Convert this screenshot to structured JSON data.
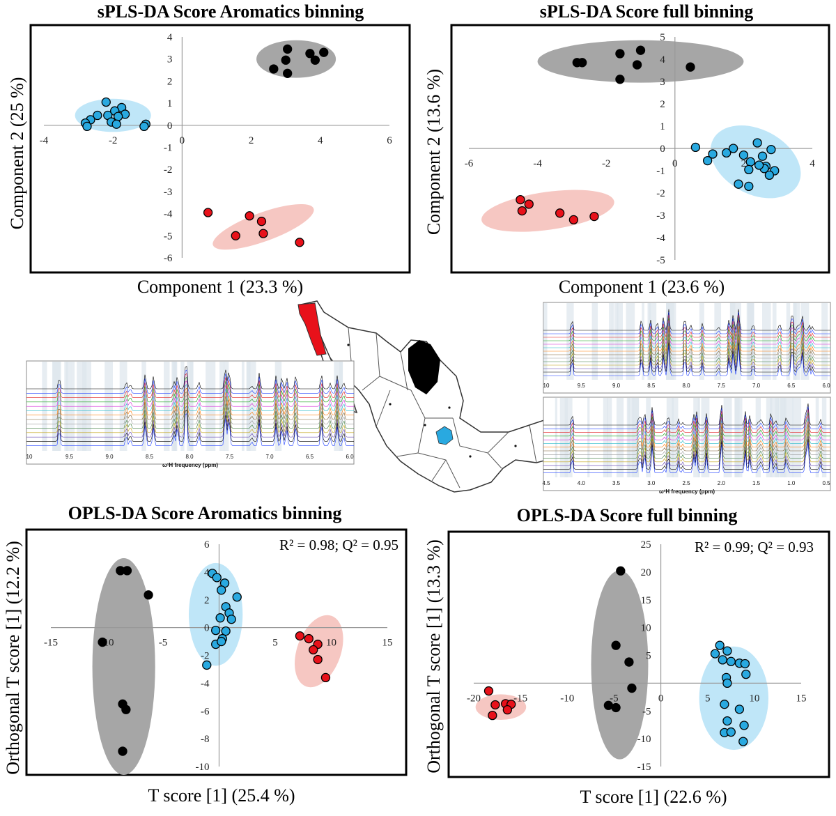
{
  "colors": {
    "black_group": "#000000",
    "blue_group": "#29a9e0",
    "red_group": "#e8111a",
    "black_ellipse": "#a6a6a6",
    "blue_ellipse": "#bfe6f8",
    "red_ellipse": "#f6c7c2"
  },
  "chart_data": [
    {
      "type": "scatter",
      "title": "sPLS-DA Score Aromatics binning",
      "xlabel": "Component 1 (23.3 %)",
      "ylabel": "Component 2 (25 %)",
      "xlim": [
        -4,
        6
      ],
      "ylim": [
        -6,
        4
      ],
      "xticks": [
        -4,
        -2,
        0,
        2,
        4,
        6
      ],
      "yticks": [
        -6,
        -5,
        -4,
        -3,
        -2,
        -1,
        0,
        1,
        2,
        3,
        4
      ],
      "ellipses": [
        {
          "group": "black",
          "cx": 3.3,
          "cy": 3.0,
          "rx": 1.15,
          "ry": 0.85,
          "angle": 0
        },
        {
          "group": "blue",
          "cx": -2.0,
          "cy": 0.45,
          "rx": 1.1,
          "ry": 0.75,
          "angle": 0
        },
        {
          "group": "red",
          "cx": 2.35,
          "cy": -4.6,
          "rx": 1.55,
          "ry": 0.65,
          "angle": -20
        }
      ],
      "series": [
        {
          "name": "black",
          "points": [
            [
              3.05,
              3.45
            ],
            [
              3.7,
              3.25
            ],
            [
              4.1,
              3.3
            ],
            [
              2.65,
              2.55
            ],
            [
              3.0,
              2.95
            ],
            [
              3.05,
              2.35
            ],
            [
              3.85,
              2.95
            ]
          ]
        },
        {
          "name": "blue",
          "points": [
            [
              -2.2,
              1.05
            ],
            [
              -1.75,
              0.8
            ],
            [
              -1.95,
              0.65
            ],
            [
              -2.45,
              0.45
            ],
            [
              -2.15,
              0.45
            ],
            [
              -1.65,
              0.5
            ],
            [
              -1.85,
              0.4
            ],
            [
              -2.65,
              0.25
            ],
            [
              -2.05,
              0.15
            ],
            [
              -2.8,
              0.1
            ],
            [
              -2.75,
              -0.05
            ],
            [
              -1.9,
              0.05
            ],
            [
              -1.05,
              0.05
            ],
            [
              -1.1,
              -0.05
            ]
          ]
        },
        {
          "name": "red",
          "points": [
            [
              0.75,
              -3.95
            ],
            [
              1.95,
              -4.1
            ],
            [
              2.3,
              -4.35
            ],
            [
              2.35,
              -4.9
            ],
            [
              1.55,
              -5.0
            ],
            [
              3.4,
              -5.3
            ]
          ]
        }
      ]
    },
    {
      "type": "scatter",
      "title": "sPLS-DA Score full binning",
      "xlabel": "Component 1 (23.6 %)",
      "ylabel": "Component 2 (13.6 %)",
      "xlim": [
        -6,
        4
      ],
      "ylim": [
        -5,
        5
      ],
      "xticks": [
        -6,
        -4,
        -2,
        0,
        2,
        4
      ],
      "yticks": [
        -5,
        -4,
        -3,
        -2,
        -1,
        0,
        1,
        2,
        3,
        4,
        5
      ],
      "ellipses": [
        {
          "group": "black",
          "cx": -1.0,
          "cy": 3.9,
          "rx": 3.0,
          "ry": 0.95,
          "angle": 0
        },
        {
          "group": "blue",
          "cx": 2.35,
          "cy": -0.6,
          "rx": 1.4,
          "ry": 1.45,
          "angle": 28
        },
        {
          "group": "red",
          "cx": -3.7,
          "cy": -2.8,
          "rx": 1.95,
          "ry": 0.85,
          "angle": -8
        }
      ],
      "series": [
        {
          "name": "black",
          "points": [
            [
              -2.85,
              3.85
            ],
            [
              -2.7,
              3.85
            ],
            [
              -1.6,
              4.25
            ],
            [
              -1.1,
              3.75
            ],
            [
              -1.6,
              3.1
            ],
            [
              -1.0,
              4.4
            ],
            [
              0.45,
              3.65
            ]
          ]
        },
        {
          "name": "blue",
          "points": [
            [
              0.6,
              0.05
            ],
            [
              1.1,
              -0.25
            ],
            [
              1.5,
              -0.2
            ],
            [
              1.7,
              0.0
            ],
            [
              2.0,
              -0.3
            ],
            [
              2.8,
              -0.05
            ],
            [
              2.4,
              0.25
            ],
            [
              2.55,
              -0.35
            ],
            [
              2.65,
              -0.8
            ],
            [
              2.9,
              -1.0
            ],
            [
              2.6,
              -0.9
            ],
            [
              2.2,
              -0.6
            ],
            [
              2.15,
              -0.95
            ],
            [
              0.95,
              -0.55
            ],
            [
              1.85,
              -1.6
            ],
            [
              2.15,
              -1.7
            ],
            [
              2.75,
              -1.2
            ],
            [
              2.45,
              -0.75
            ]
          ]
        },
        {
          "name": "red",
          "points": [
            [
              -4.5,
              -2.3
            ],
            [
              -4.25,
              -2.5
            ],
            [
              -4.45,
              -2.8
            ],
            [
              -3.35,
              -2.9
            ],
            [
              -2.95,
              -3.2
            ],
            [
              -2.35,
              -3.05
            ]
          ]
        }
      ]
    },
    {
      "type": "scatter",
      "title": "OPLS-DA Score Aromatics binning",
      "xlabel": "T score [1] (25.4 %)",
      "ylabel": "Orthogonal T score [1] (12.2 %)",
      "annotation": "R² = 0.98; Q² = 0.95",
      "xlim": [
        -15,
        15
      ],
      "ylim": [
        -10,
        6
      ],
      "xticks": [
        -15,
        -10,
        -5,
        5,
        10,
        15
      ],
      "yticks": [
        -10,
        -8,
        -6,
        -4,
        -2,
        0,
        2,
        4,
        6
      ],
      "ellipses": [
        {
          "group": "black",
          "cx": -8.5,
          "cy": -2.8,
          "rx": 2.8,
          "ry": 7.8,
          "angle": 0
        },
        {
          "group": "blue",
          "cx": -0.3,
          "cy": 0.95,
          "rx": 2.4,
          "ry": 3.7,
          "angle": 0
        },
        {
          "group": "red",
          "cx": 8.9,
          "cy": -1.7,
          "rx": 1.95,
          "ry": 2.7,
          "angle": 20
        }
      ],
      "series": [
        {
          "name": "black",
          "points": [
            [
              -8.8,
              4.1
            ],
            [
              -8.2,
              4.1
            ],
            [
              -6.3,
              2.35
            ],
            [
              -10.4,
              -1.05
            ],
            [
              -8.6,
              -5.5
            ],
            [
              -8.3,
              -5.9
            ],
            [
              -8.6,
              -8.9
            ]
          ]
        },
        {
          "name": "blue",
          "points": [
            [
              -0.6,
              3.9
            ],
            [
              -0.2,
              3.6
            ],
            [
              0.5,
              3.2
            ],
            [
              0.2,
              2.7
            ],
            [
              1.6,
              2.2
            ],
            [
              0.6,
              1.5
            ],
            [
              0.9,
              1.05
            ],
            [
              0.1,
              0.7
            ],
            [
              1.1,
              0.6
            ],
            [
              0.6,
              -0.25
            ],
            [
              0.3,
              -0.8
            ],
            [
              -0.3,
              -0.2
            ],
            [
              -0.3,
              -1.2
            ],
            [
              0.2,
              -1.0
            ],
            [
              -1.1,
              -2.7
            ]
          ]
        },
        {
          "name": "red",
          "points": [
            [
              7.2,
              -0.6
            ],
            [
              8.0,
              -0.8
            ],
            [
              8.8,
              -1.2
            ],
            [
              8.4,
              -1.6
            ],
            [
              8.8,
              -2.3
            ],
            [
              9.5,
              -3.6
            ]
          ]
        }
      ]
    },
    {
      "type": "scatter",
      "title": "OPLS-DA Score full binning",
      "xlabel": "T score [1] (22.6 %)",
      "ylabel": "Orthogonal T score [1] (13.3 %)",
      "annotation": "R² = 0.99; Q² = 0.93",
      "xlim": [
        -20,
        15
      ],
      "ylim": [
        -15,
        25
      ],
      "xticks": [
        -20,
        -15,
        -10,
        -5,
        0,
        5,
        10,
        15
      ],
      "yticks": [
        -15,
        -10,
        -5,
        5,
        10,
        15,
        20,
        25
      ],
      "ellipses": [
        {
          "group": "black",
          "cx": -4.4,
          "cy": 3.3,
          "rx": 3.05,
          "ry": 17.0,
          "angle": 0
        },
        {
          "group": "blue",
          "cx": 7.8,
          "cy": -2.7,
          "rx": 3.7,
          "ry": 9.3,
          "angle": 0
        },
        {
          "group": "red",
          "cx": -17.1,
          "cy": -4.3,
          "rx": 2.7,
          "ry": 2.3,
          "angle": 0
        }
      ],
      "series": [
        {
          "name": "black",
          "points": [
            [
              -4.3,
              20.2
            ],
            [
              -4.8,
              6.8
            ],
            [
              -3.4,
              3.8
            ],
            [
              -3.1,
              -0.9
            ],
            [
              -5.6,
              -4.0
            ],
            [
              -4.8,
              -4.4
            ]
          ]
        },
        {
          "name": "blue",
          "points": [
            [
              5.8,
              5.3
            ],
            [
              6.3,
              6.8
            ],
            [
              7.1,
              5.8
            ],
            [
              6.6,
              4.2
            ],
            [
              7.5,
              3.9
            ],
            [
              8.4,
              3.6
            ],
            [
              9.0,
              3.5
            ],
            [
              9.1,
              1.6
            ],
            [
              7.0,
              1.0
            ],
            [
              7.1,
              0.0
            ],
            [
              6.8,
              -3.8
            ],
            [
              8.4,
              -4.7
            ],
            [
              7.1,
              -6.8
            ],
            [
              8.9,
              -7.6
            ],
            [
              6.8,
              -8.9
            ],
            [
              7.5,
              -8.8
            ],
            [
              8.8,
              -10.5
            ]
          ]
        },
        {
          "name": "red",
          "points": [
            [
              -18.4,
              -1.4
            ],
            [
              -17.7,
              -3.9
            ],
            [
              -16.6,
              -3.7
            ],
            [
              -16.0,
              -3.8
            ],
            [
              -16.4,
              -4.8
            ],
            [
              -18.0,
              -5.8
            ]
          ]
        }
      ]
    }
  ],
  "spectra": {
    "left": {
      "xlabel": "ω¹H frequency (ppm)",
      "ticks": [
        "10",
        "9.5",
        "9.0",
        "8.5",
        "8.0",
        "7.5",
        "7.0",
        "6.5",
        "6.0"
      ]
    },
    "top_right": {
      "ticks": [
        "10",
        "9.5",
        "9.0",
        "8.5",
        "8.0",
        "7.5",
        "7.0",
        "6.5",
        "6.0"
      ]
    },
    "bottom_right": {
      "xlabel": "ω¹H frequency (ppm)",
      "ticks": [
        "4.5",
        "4.0",
        "3.5",
        "3.0",
        "2.5",
        "2.0",
        "1.5",
        "1.0",
        "0.5"
      ]
    }
  },
  "map": {
    "regions": [
      {
        "name": "red-region",
        "color": "#e8111a"
      },
      {
        "name": "black-region",
        "color": "#000000"
      },
      {
        "name": "blue-region",
        "color": "#29a9e0"
      }
    ]
  }
}
